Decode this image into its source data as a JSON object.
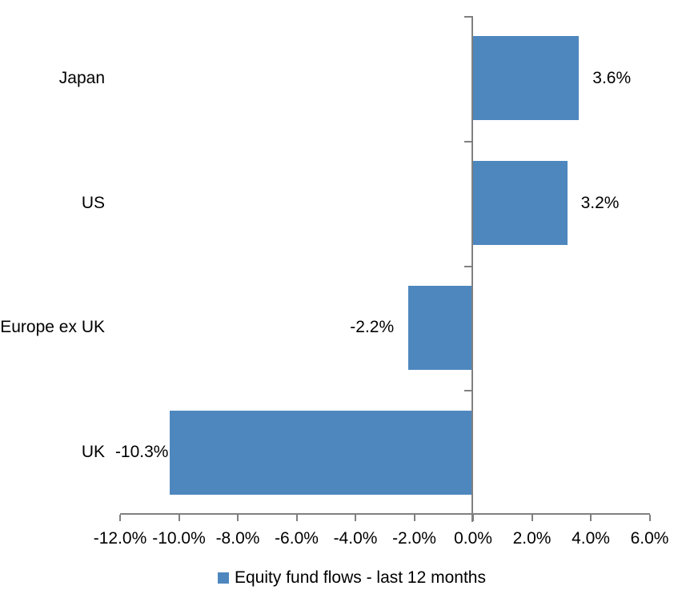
{
  "chart_data": {
    "type": "bar",
    "orientation": "horizontal",
    "categories": [
      "Japan",
      "US",
      "Europe ex UK",
      "UK"
    ],
    "series": [
      {
        "name": "Equity fund flows - last 12 months",
        "values": [
          3.6,
          3.2,
          -2.2,
          -10.3
        ],
        "value_labels": [
          "3.6%",
          "3.2%",
          "-2.2%",
          "-10.3%"
        ]
      }
    ],
    "xlim": [
      -12,
      6
    ],
    "x_ticks": [
      -12,
      -10,
      -8,
      -6,
      -4,
      -2,
      0,
      2,
      4,
      6
    ],
    "x_tick_labels": [
      "-12.0%",
      "-10.0%",
      "-8.0%",
      "-6.0%",
      "-4.0%",
      "-2.0%",
      "0.0%",
      "2.0%",
      "4.0%",
      "6.0%"
    ],
    "grid": false,
    "legend": {
      "position": "bottom",
      "label": "Equity fund flows - last 12 months"
    },
    "colors": {
      "bar": "#4E87BE",
      "axis": "#808080",
      "text": "#000000",
      "background": "#FFFFFF"
    }
  }
}
